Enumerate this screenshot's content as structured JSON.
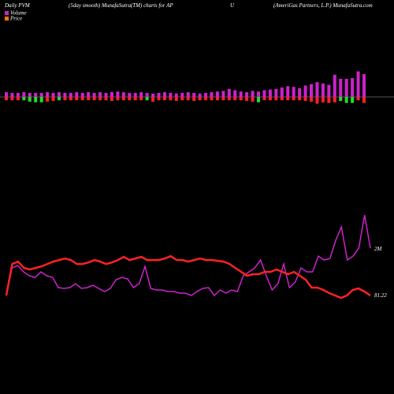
{
  "header": {
    "left": "Daily PVM",
    "center": "(5day smooth) MunafaSutra(TM) charts for AP",
    "ticker": "U",
    "right": "(AmeriGas Partners, L.P.) MunafaSutra.com"
  },
  "chart_data": [
    {
      "type": "bar",
      "background": "#000000",
      "series": [
        {
          "name": "Volume",
          "color": "#cc22cc",
          "values": [
            7,
            6,
            6,
            7,
            6,
            6,
            6,
            7,
            6,
            7,
            6,
            6,
            7,
            6,
            7,
            6,
            7,
            6,
            7,
            8,
            7,
            6,
            6,
            7,
            6,
            5,
            6,
            7,
            6,
            5,
            6,
            7,
            6,
            5,
            6,
            7,
            8,
            9,
            12,
            10,
            8,
            7,
            9,
            8,
            10,
            11,
            12,
            14,
            16,
            15,
            13,
            17,
            19,
            22,
            20,
            18,
            33,
            27,
            27,
            28,
            38,
            34
          ]
        },
        {
          "name": "Price",
          "color": "#ff7700",
          "values": []
        }
      ],
      "lower_values": [
        5,
        5,
        5,
        5,
        7,
        8,
        8,
        7,
        6,
        5,
        5,
        5,
        5,
        5,
        5,
        5,
        5,
        5,
        6,
        5,
        5,
        5,
        5,
        5,
        5,
        7,
        5,
        5,
        5,
        6,
        5,
        5,
        6,
        5,
        5,
        5,
        5,
        5,
        5,
        5,
        5,
        6,
        7,
        8,
        5,
        5,
        5,
        5,
        5,
        5,
        5,
        6,
        7,
        10,
        8,
        9,
        8,
        6,
        9,
        9,
        5,
        9
      ],
      "lower_colors": [
        "#ff2222",
        "#ff2222",
        "#ff2222",
        "#22dd22",
        "#22dd22",
        "#22dd22",
        "#22dd22",
        "#ff2222",
        "#ff2222",
        "#22dd22",
        "#ff2222",
        "#ff2222",
        "#ff2222",
        "#ff2222",
        "#ff2222",
        "#ff2222",
        "#ff2222",
        "#ff2222",
        "#ff2222",
        "#ff2222",
        "#ff2222",
        "#ff2222",
        "#ff2222",
        "#ff2222",
        "#22dd22",
        "#ff2222",
        "#ff2222",
        "#ff2222",
        "#ff2222",
        "#ff2222",
        "#ff2222",
        "#ff2222",
        "#ff2222",
        "#ff2222",
        "#ff2222",
        "#ff2222",
        "#ff2222",
        "#ff2222",
        "#ff2222",
        "#ff2222",
        "#ff2222",
        "#ff2222",
        "#ff2222",
        "#22dd22",
        "#ff2222",
        "#ff2222",
        "#ff2222",
        "#ff2222",
        "#ff2222",
        "#ff2222",
        "#ff2222",
        "#ff2222",
        "#ff2222",
        "#ff2222",
        "#ff2222",
        "#ff2222",
        "#ff2222",
        "#22dd22",
        "#22dd22",
        "#22dd22",
        "#ff2222",
        "#ff2222"
      ],
      "ylim": [
        -40,
        40
      ]
    },
    {
      "type": "line",
      "series": [
        {
          "name": "Volume",
          "color": "#cc22cc",
          "values": [
            25,
            60,
            63,
            55,
            50,
            48,
            55,
            50,
            48,
            35,
            34,
            35,
            40,
            34,
            35,
            38,
            34,
            30,
            34,
            45,
            48,
            46,
            35,
            40,
            62,
            34,
            32,
            32,
            30,
            30,
            28,
            28,
            25,
            30,
            34,
            35,
            25,
            32,
            28,
            32,
            30,
            50,
            55,
            60,
            70,
            50,
            32,
            40,
            65,
            35,
            42,
            60,
            55,
            55,
            75,
            70,
            72,
            95,
            112,
            70,
            75,
            85,
            127,
            85
          ]
        },
        {
          "name": "Price",
          "color": "#ff2222",
          "values": [
            25,
            65,
            68,
            60,
            58,
            60,
            62,
            65,
            68,
            70,
            72,
            70,
            65,
            65,
            67,
            70,
            68,
            65,
            67,
            70,
            74,
            70,
            72,
            74,
            70,
            70,
            70,
            72,
            75,
            70,
            70,
            68,
            70,
            72,
            70,
            70,
            69,
            68,
            65,
            60,
            55,
            50,
            52,
            52,
            55,
            55,
            58,
            55,
            52,
            55,
            50,
            45,
            35,
            35,
            32,
            28,
            25,
            22,
            25,
            32,
            34,
            30,
            25
          ]
        }
      ],
      "end_labels": [
        "2M",
        "81.22"
      ],
      "ylim": [
        0,
        150
      ]
    }
  ]
}
